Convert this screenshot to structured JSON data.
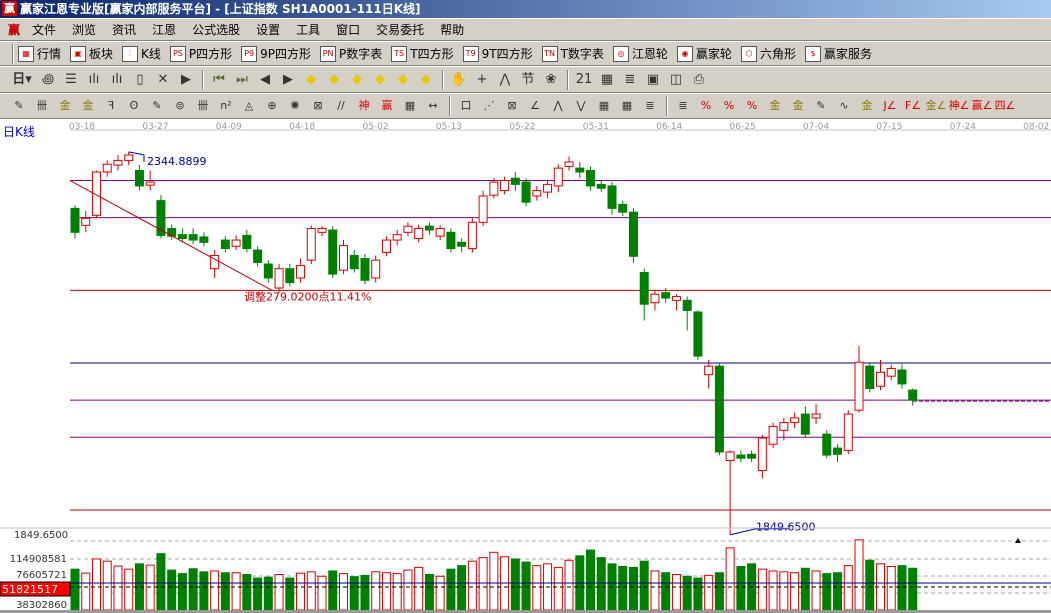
{
  "window": {
    "title": "赢家江恩专业版[赢家内部服务平台] - [上证指数   SH1A0001-111日K线]",
    "logo": "赢"
  },
  "menu": {
    "logo": "赢",
    "items": [
      "文件",
      "浏览",
      "资讯",
      "江恩",
      "公式选股",
      "设置",
      "工具",
      "窗口",
      "交易委托",
      "帮助"
    ]
  },
  "toolbar1": [
    {
      "icon": "quote-table-icon",
      "glyph": "▦",
      "label": "行情"
    },
    {
      "icon": "sector-grid-icon",
      "glyph": "▣",
      "label": "板块"
    },
    {
      "icon": "kline-icon",
      "glyph": "⫶",
      "label": "K线"
    },
    {
      "icon": "ps-icon",
      "glyph": "PS",
      "label": "P四方形"
    },
    {
      "icon": "p9-icon",
      "glyph": "P9",
      "label": "9P四方形"
    },
    {
      "icon": "pn-icon",
      "glyph": "PN",
      "label": "P数字表"
    },
    {
      "icon": "ts-icon",
      "glyph": "TS",
      "label": "T四方形"
    },
    {
      "icon": "t9-icon",
      "glyph": "T9",
      "label": "9T四方形"
    },
    {
      "icon": "tn-icon",
      "glyph": "TN",
      "label": "T数字表"
    },
    {
      "icon": "gann-wheel-icon",
      "glyph": "◎",
      "label": "江恩轮"
    },
    {
      "icon": "winner-wheel-icon",
      "glyph": "◉",
      "label": "赢家轮"
    },
    {
      "icon": "hexagon-icon",
      "glyph": "⬡",
      "label": "六角形"
    },
    {
      "icon": "dollar-icon",
      "glyph": "$",
      "label": "赢家服务"
    }
  ],
  "toolbar2": {
    "period": "日",
    "icons": [
      "chart-style-icon",
      "notes-icon",
      "wave3-icon",
      "wave9-icon",
      "candle-type-icon",
      "indicator-icon",
      "flag-icon",
      "first-icon",
      "last-icon",
      "prev-icon",
      "next-icon",
      "left-diamond-icon",
      "right-diamond-icon",
      "expand-h-icon",
      "shrink-icon",
      "expand-icon",
      "expand-v-icon",
      "hand-icon",
      "crosshair-icon",
      "line-draw-icon",
      "node-icon",
      "tree-icon",
      "calendar-icon",
      "calculator-icon",
      "document-icon",
      "save-icon",
      "network-icon",
      "print-icon"
    ],
    "glyphs": [
      "꩜",
      "☰",
      "ılı",
      "ılı",
      "▯",
      "✕",
      "▶",
      "⏮",
      "⏭",
      "◀",
      "▶",
      "◆",
      "◆",
      "◆",
      "◆",
      "◆",
      "◆",
      "✋",
      "+",
      "⋀",
      "节",
      "❀",
      "21",
      "▦",
      "≣",
      "▣",
      "◫",
      "⎙"
    ]
  },
  "toolbar3": {
    "icons": [
      "pencil-icon",
      "vlines-icon",
      "gold1-icon",
      "gold2-icon",
      "fib-icon",
      "spiral-icon",
      "brush-icon",
      "circle-icon",
      "vlines2-icon",
      "n2-icon",
      "triangle-icon",
      "target-icon",
      "radar-icon",
      "box-icon",
      "parallel-icon",
      "shen-icon",
      "ying-icon",
      "grid-icon",
      "measure-icon",
      "rect-icon",
      "fan-icon",
      "box-fan-icon",
      "fan2-icon",
      "angle-icon",
      "zigzag-icon",
      "grid2-icon",
      "grid3-icon",
      "lines-icon",
      "table-icon",
      "pct-slash-icon",
      "percent-icon",
      "pct-lines-icon",
      "gold-circle-icon",
      "gold-lines-icon",
      "pen-icon",
      "wave-icon",
      "gold-icon",
      "j-angle-icon",
      "f-angle-icon",
      "gold-angle-icon",
      "shen-angle-icon",
      "ying-angle-icon",
      "four-angle-icon"
    ],
    "glyphs": [
      "✎",
      "卌",
      "金",
      "金",
      "ꟻ",
      "ʘ",
      "✎",
      "⊜",
      "卌",
      "n²",
      "◬",
      "⊕",
      "✺",
      "⊠",
      "//",
      "神",
      "赢",
      "▦",
      "↔",
      "口",
      "⋰",
      "⊠",
      "∠",
      "⋀",
      "⋁",
      "▦",
      "▦",
      "≣",
      "≣",
      "%",
      "%",
      "%",
      "金",
      "金",
      "✎",
      "∿",
      "金",
      "J∠",
      "F∠",
      "金∠",
      "神∠",
      "赢∠",
      "四∠"
    ]
  },
  "chart": {
    "label": "日K线",
    "dates": [
      "03-18",
      "03-27",
      "04-09",
      "04-18",
      "05-02",
      "05-13",
      "05-22",
      "05-31",
      "06-14",
      "06-25",
      "07-04",
      "07-15",
      "07-24",
      "08-02"
    ],
    "high_label": "2344.8899",
    "low_label": "1849.6500",
    "adjust_label": "调整279.0200点11.41%",
    "colors": {
      "up": "#e00000",
      "down": "#008000",
      "trend": "#c00000"
    },
    "levels": [
      {
        "price": 2308,
        "color": "#800080"
      },
      {
        "price": 2260,
        "color": "#800080"
      },
      {
        "price": 2166,
        "color": "#c00000"
      },
      {
        "price": 2072,
        "color": "#000080"
      },
      {
        "price": 2024,
        "color": "#800080"
      },
      {
        "price": 1976,
        "color": "#800080"
      },
      {
        "price": 1882,
        "color": "#c00000"
      }
    ],
    "last_price": 2024,
    "ohlc": [
      [
        2272,
        2276,
        2233,
        2241
      ],
      [
        2250,
        2269,
        2241,
        2259
      ],
      [
        2263,
        2321,
        2259,
        2319
      ],
      [
        2319,
        2334,
        2313,
        2329
      ],
      [
        2328,
        2341,
        2321,
        2334
      ],
      [
        2334,
        2345,
        2328,
        2341
      ],
      [
        2321,
        2328,
        2295,
        2301
      ],
      [
        2302,
        2321,
        2295,
        2306
      ],
      [
        2282,
        2289,
        2233,
        2237
      ],
      [
        2246,
        2251,
        2231,
        2236
      ],
      [
        2238,
        2246,
        2228,
        2233
      ],
      [
        2238,
        2246,
        2226,
        2231
      ],
      [
        2235,
        2241,
        2223,
        2228
      ],
      [
        2194,
        2218,
        2182,
        2211
      ],
      [
        2231,
        2236,
        2215,
        2220
      ],
      [
        2223,
        2237,
        2218,
        2231
      ],
      [
        2237,
        2244,
        2215,
        2220
      ],
      [
        2218,
        2223,
        2197,
        2202
      ],
      [
        2200,
        2205,
        2176,
        2182
      ],
      [
        2169,
        2200,
        2163,
        2194
      ],
      [
        2194,
        2200,
        2171,
        2176
      ],
      [
        2182,
        2207,
        2176,
        2198
      ],
      [
        2205,
        2250,
        2200,
        2246
      ],
      [
        2241,
        2249,
        2236,
        2246
      ],
      [
        2244,
        2249,
        2182,
        2187
      ],
      [
        2192,
        2231,
        2187,
        2224
      ],
      [
        2211,
        2218,
        2189,
        2194
      ],
      [
        2207,
        2213,
        2174,
        2179
      ],
      [
        2182,
        2211,
        2176,
        2205
      ],
      [
        2215,
        2236,
        2210,
        2231
      ],
      [
        2231,
        2244,
        2224,
        2238
      ],
      [
        2241,
        2254,
        2236,
        2249
      ],
      [
        2233,
        2251,
        2228,
        2246
      ],
      [
        2249,
        2254,
        2238,
        2244
      ],
      [
        2236,
        2250,
        2231,
        2246
      ],
      [
        2241,
        2246,
        2215,
        2220
      ],
      [
        2228,
        2233,
        2215,
        2223
      ],
      [
        2220,
        2259,
        2215,
        2254
      ],
      [
        2254,
        2295,
        2249,
        2288
      ],
      [
        2289,
        2311,
        2285,
        2306
      ],
      [
        2295,
        2313,
        2290,
        2308
      ],
      [
        2311,
        2319,
        2295,
        2303
      ],
      [
        2306,
        2311,
        2275,
        2280
      ],
      [
        2288,
        2301,
        2282,
        2295
      ],
      [
        2293,
        2308,
        2285,
        2303
      ],
      [
        2301,
        2329,
        2293,
        2324
      ],
      [
        2326,
        2339,
        2321,
        2332
      ],
      [
        2324,
        2332,
        2311,
        2319
      ],
      [
        2321,
        2326,
        2295,
        2301
      ],
      [
        2303,
        2308,
        2293,
        2298
      ],
      [
        2301,
        2306,
        2264,
        2272
      ],
      [
        2277,
        2282,
        2262,
        2267
      ],
      [
        2267,
        2272,
        2202,
        2210
      ],
      [
        2189,
        2194,
        2127,
        2148
      ],
      [
        2150,
        2166,
        2140,
        2161
      ],
      [
        2163,
        2169,
        2150,
        2156
      ],
      [
        2153,
        2161,
        2140,
        2158
      ],
      [
        2153,
        2158,
        2114,
        2140
      ],
      [
        2138,
        2140,
        2076,
        2081
      ],
      [
        2057,
        2076,
        2039,
        2068
      ],
      [
        2068,
        2073,
        1953,
        1957
      ],
      [
        1946,
        1959,
        1850,
        1957
      ],
      [
        1953,
        1959,
        1944,
        1949
      ],
      [
        1954,
        1959,
        1944,
        1949
      ],
      [
        1933,
        1979,
        1923,
        1975
      ],
      [
        1967,
        1995,
        1962,
        1990
      ],
      [
        1985,
        2001,
        1972,
        1995
      ],
      [
        1995,
        2008,
        1988,
        2001
      ],
      [
        2006,
        2016,
        1975,
        1980
      ],
      [
        2001,
        2019,
        1993,
        2006
      ],
      [
        1980,
        1985,
        1949,
        1953
      ],
      [
        1962,
        1967,
        1944,
        1954
      ],
      [
        1959,
        2011,
        1954,
        2006
      ],
      [
        2011,
        2094,
        2008,
        2073
      ],
      [
        2068,
        2073,
        2034,
        2039
      ],
      [
        2042,
        2076,
        2037,
        2060
      ],
      [
        2055,
        2070,
        2050,
        2065
      ],
      [
        2063,
        2070,
        2039,
        2045
      ],
      [
        2037,
        2039,
        2017,
        2024
      ]
    ],
    "volume": [
      92,
      83,
      115,
      110,
      99,
      92,
      104,
      101,
      127,
      90,
      82,
      93,
      86,
      88,
      84,
      84,
      80,
      72,
      74,
      80,
      72,
      83,
      86,
      76,
      88,
      82,
      75,
      78,
      86,
      84,
      82,
      90,
      96,
      80,
      76,
      92,
      100,
      110,
      118,
      130,
      120,
      115,
      108,
      100,
      104,
      96,
      112,
      122,
      135,
      118,
      104,
      98,
      96,
      110,
      88,
      84,
      80,
      76,
      72,
      78,
      84,
      140,
      98,
      104,
      92,
      88,
      86,
      84,
      94,
      88,
      82,
      84,
      100,
      158,
      112,
      104,
      98,
      100,
      94
    ],
    "volume_labels": [
      "114908581",
      "76605721",
      "38302860"
    ],
    "volume_current": "51821517",
    "volume_ma": 51.8
  }
}
